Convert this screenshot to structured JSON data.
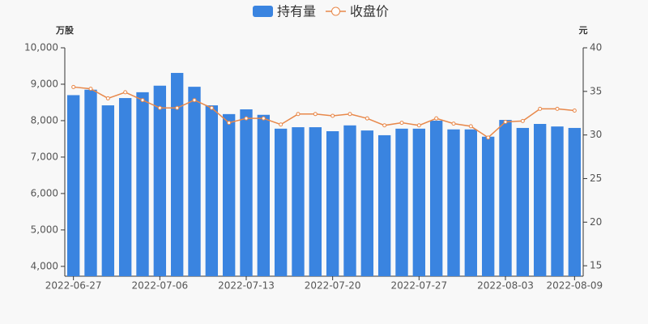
{
  "chart_data": {
    "type": "bar-line",
    "categories": [
      "2022-06-27",
      null,
      null,
      null,
      null,
      "2022-07-06",
      null,
      null,
      null,
      null,
      "2022-07-13",
      null,
      null,
      null,
      null,
      "2022-07-20",
      null,
      null,
      null,
      null,
      "2022-07-27",
      null,
      null,
      null,
      null,
      "2022-08-03",
      null,
      null,
      null,
      "2022-08-09"
    ],
    "y_label": "万股",
    "y2_label": "元",
    "series": [
      {
        "name": "持有量",
        "type": "bar",
        "color": "#3a84e0",
        "values": [
          8700,
          8850,
          8420,
          8620,
          8780,
          8960,
          9310,
          8930,
          8420,
          8180,
          8310,
          8160,
          7780,
          7820,
          7820,
          7710,
          7870,
          7730,
          7600,
          7780,
          7780,
          8000,
          7760,
          7760,
          7560,
          8020,
          7800,
          7910,
          7840,
          7800
        ]
      },
      {
        "name": "收盘价",
        "type": "line",
        "axis": "y2",
        "color": "#e8884a",
        "values": [
          35.5,
          35.3,
          34.2,
          34.9,
          34.0,
          33.1,
          33.1,
          34.0,
          33.1,
          31.4,
          31.9,
          31.9,
          31.2,
          32.4,
          32.4,
          32.2,
          32.4,
          31.9,
          31.1,
          31.4,
          31.1,
          31.9,
          31.3,
          31.0,
          29.7,
          31.5,
          31.6,
          33.0,
          33.0,
          32.8
        ]
      }
    ],
    "ylim": [
      3730,
      10000
    ],
    "yticks": [
      {
        "value": 4000,
        "label": "4,000"
      },
      {
        "value": 5000,
        "label": "5,000"
      },
      {
        "value": 6000,
        "label": "6,000"
      },
      {
        "value": 7000,
        "label": "7,000"
      },
      {
        "value": 8000,
        "label": "8,000"
      },
      {
        "value": 9000,
        "label": "9,000"
      },
      {
        "value": 10000,
        "label": "10,000"
      }
    ],
    "y2lim": [
      13.8,
      40
    ],
    "y2ticks": [
      15,
      20,
      25,
      30,
      35,
      40
    ]
  }
}
